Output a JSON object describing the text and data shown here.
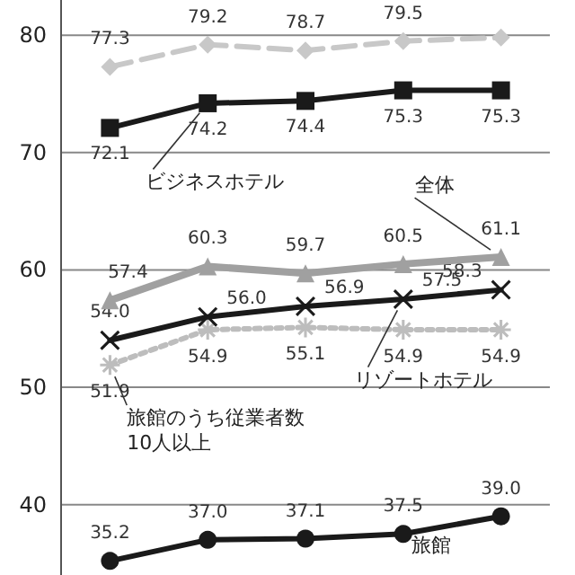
{
  "chart_data": {
    "type": "line",
    "categories": [
      null,
      null,
      null,
      null,
      null
    ],
    "ylim": [
      34,
      83
    ],
    "yticks": [
      40,
      50,
      60,
      70,
      80
    ],
    "grid": "y",
    "tick_labels": "y",
    "series": [
      {
        "color": "#c8c8c8",
        "marker": "diamond",
        "line_style": "dashed",
        "values": [
          77.3,
          79.2,
          78.7,
          79.5,
          79.8
        ],
        "value_labels": [
          "77.3",
          "79.2",
          "78.7",
          "79.5",
          null
        ]
      },
      {
        "name": "ビジネスホテル",
        "color": "#1a1a1a",
        "marker": "square",
        "line_style": "solid",
        "values": [
          72.1,
          74.2,
          74.4,
          75.3,
          75.3
        ],
        "value_labels": [
          "72.1",
          "74.2",
          "74.4",
          "75.3",
          "75.3"
        ]
      },
      {
        "name": "全体",
        "color": "#a0a0a0",
        "marker": "triangle",
        "line_style": "solid",
        "values": [
          57.4,
          60.3,
          59.7,
          60.5,
          61.1
        ],
        "value_labels": [
          "57.4",
          "60.3",
          "59.7",
          "60.5",
          "61.1"
        ]
      },
      {
        "name": "リゾートホテル",
        "color": "#1a1a1a",
        "marker": "cross",
        "line_style": "solid",
        "values": [
          54.0,
          56.0,
          56.9,
          57.5,
          58.3
        ],
        "value_labels": [
          "54.0",
          "56.0",
          "56.9",
          "57.5",
          "58.3"
        ]
      },
      {
        "name": "旅館のうち従業者数10人以上",
        "color": "#bdbdbd",
        "marker": "star",
        "line_style": "dotted",
        "values": [
          51.9,
          54.9,
          55.1,
          54.9,
          54.9
        ],
        "value_labels": [
          "51.9",
          "54.9",
          "55.1",
          "54.9",
          "54.9"
        ]
      },
      {
        "name": "旅館",
        "color": "#1a1a1a",
        "marker": "circle",
        "line_style": "solid",
        "values": [
          35.2,
          37.0,
          37.1,
          37.5,
          39.0
        ],
        "value_labels": [
          "35.2",
          "37.0",
          "37.1",
          "37.5",
          "39.0"
        ]
      }
    ]
  }
}
